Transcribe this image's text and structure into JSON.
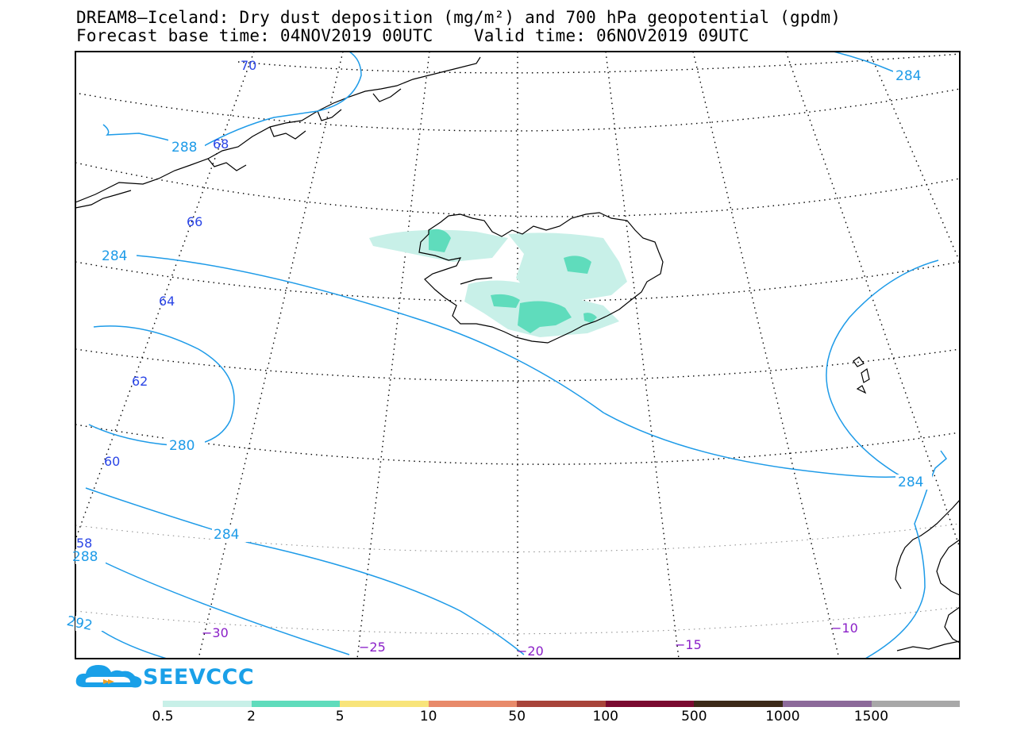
{
  "header": {
    "title_line1": "DREAM8—Iceland: Dry dust deposition (mg/m²) and 700 hPa geopotential (gpdm)",
    "title_line2": "Forecast base time: 04NOV2019 00UTC    Valid time: 06NOV2019 09UTC"
  },
  "map": {
    "latitude_labels": [
      "70",
      "68",
      "66",
      "64",
      "62",
      "60",
      "58"
    ],
    "longitude_labels": [
      "−30",
      "−25",
      "−20",
      "−15",
      "−10"
    ],
    "contour_labels": {
      "c284_top_right": "284",
      "c288_top_left": "288",
      "c284_left": "284",
      "c280_left": "280",
      "c284_lower_left": "284",
      "c288_lower_left": "288",
      "c292_lower_left": "292",
      "c284_right": "284"
    },
    "colors": {
      "contour": "#1e9be8",
      "latitude_label": "#2a45e6",
      "longitude_label": "#8a1fc8",
      "coastline": "#000000",
      "grid": "#000000"
    }
  },
  "logo": {
    "text": "SEEVCCC"
  },
  "colorbar": {
    "colors": [
      "#c8f0e8",
      "#5fdcbc",
      "#f8e47a",
      "#e88a6a",
      "#a8443a",
      "#7a0a30",
      "#3c2a18",
      "#8c6a9a",
      "#a8a8a8"
    ],
    "labels": [
      "0.5",
      "2",
      "5",
      "10",
      "50",
      "100",
      "500",
      "1000",
      "1500"
    ]
  }
}
